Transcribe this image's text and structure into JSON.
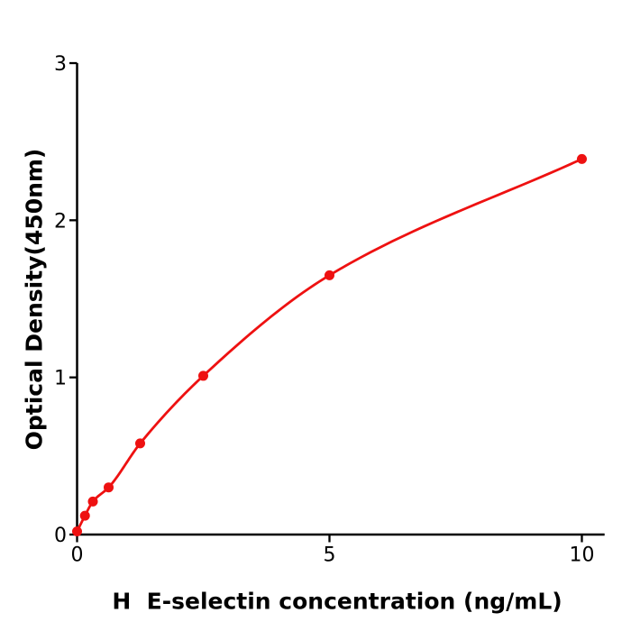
{
  "figure": {
    "background": "#ffffff",
    "axis_color": "#000000"
  },
  "chart_data": {
    "type": "line",
    "xlabel": "H  E-selectin concentration (ng/mL)",
    "ylabel": "Optical Density(450nm)",
    "x": [
      0,
      0.156,
      0.313,
      0.625,
      1.25,
      2.5,
      5,
      10
    ],
    "y": [
      0.02,
      0.12,
      0.21,
      0.3,
      0.58,
      1.01,
      1.65,
      2.39
    ],
    "x_ticks": [
      0,
      5,
      10
    ],
    "x_tick_labels": [
      "0",
      "5",
      "10"
    ],
    "y_ticks": [
      0,
      1,
      2,
      3
    ],
    "y_tick_labels": [
      "0",
      "1",
      "2",
      "3"
    ],
    "xlim": [
      0,
      10.45
    ],
    "ylim": [
      0,
      3
    ],
    "grid": false,
    "legend": "none",
    "line_color": "#ee1111",
    "marker": "circle",
    "marker_color": "#ee1111",
    "axis_color": "#000000"
  }
}
